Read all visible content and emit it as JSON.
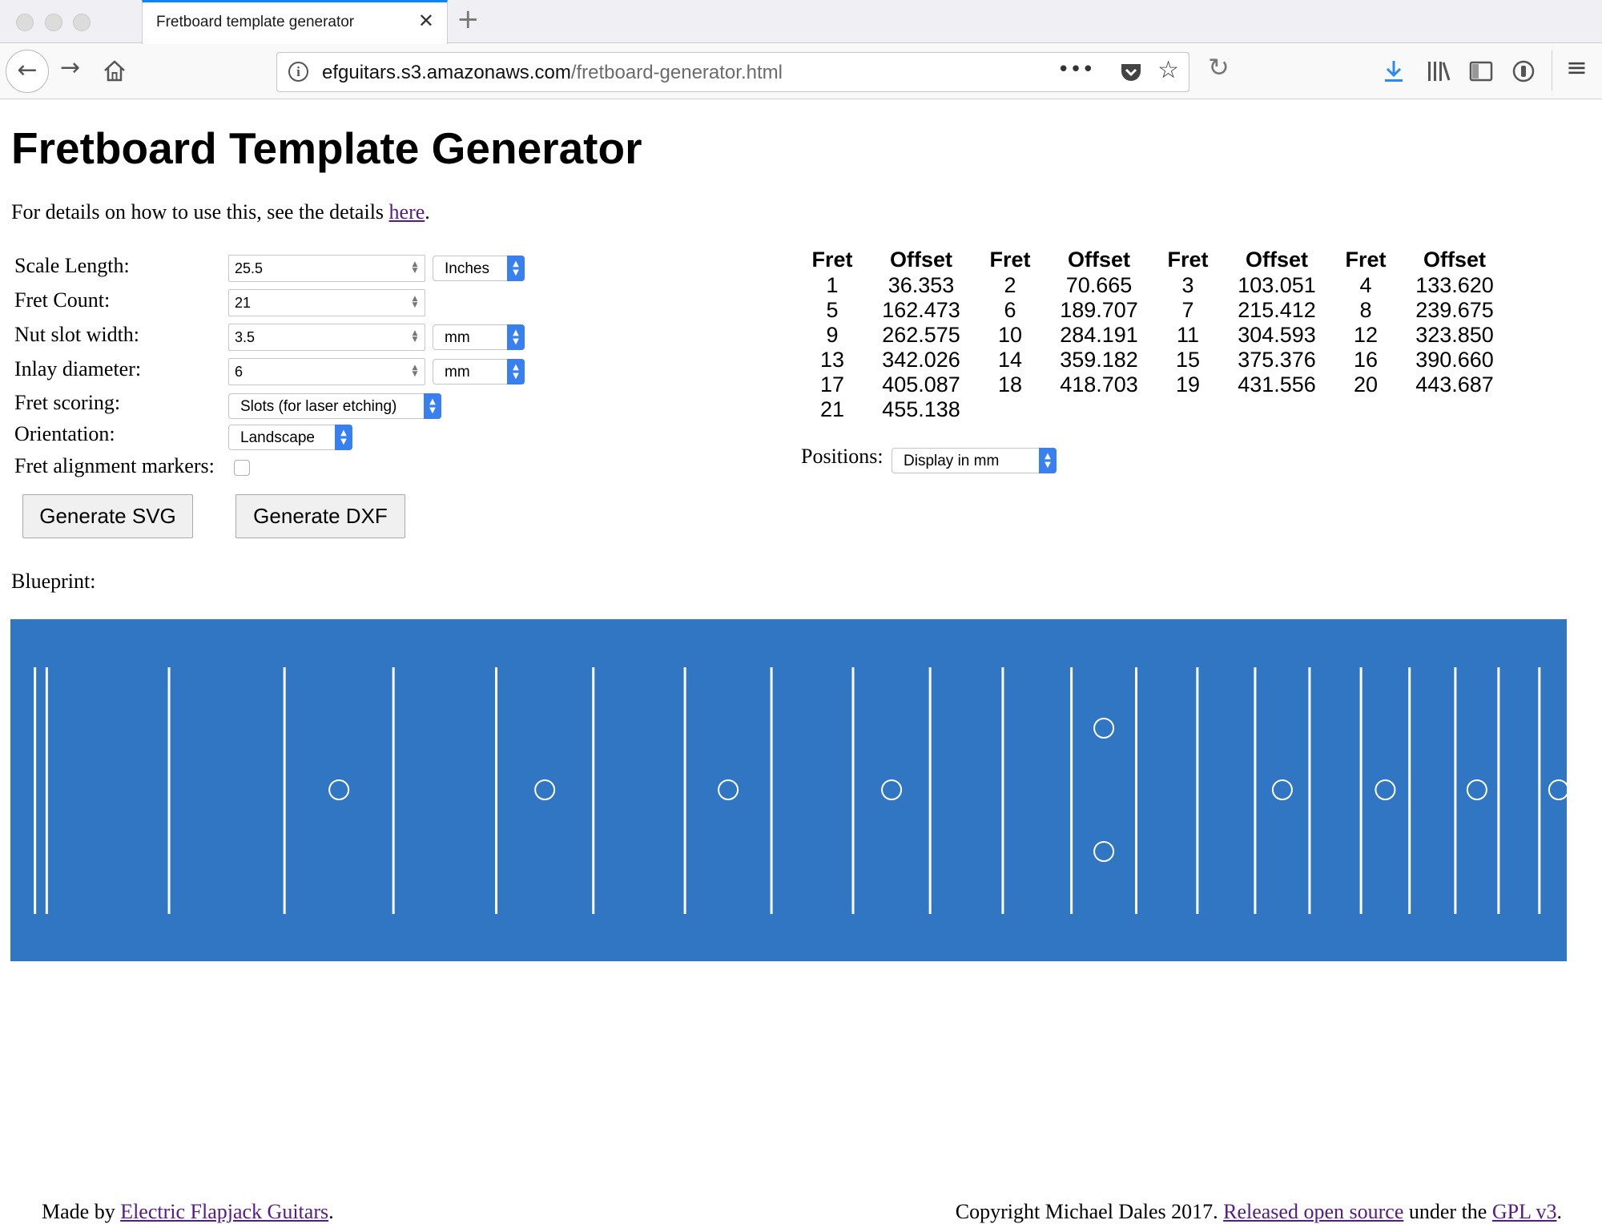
{
  "browser": {
    "tab_title": "Fretboard template generator",
    "url_host": "efguitars.s3.amazonaws.com",
    "url_path": "/fretboard-generator.html"
  },
  "page": {
    "title": "Fretboard Template Generator",
    "intro_text": "For details on how to use this, see the details ",
    "intro_link": "here",
    "intro_end": "."
  },
  "form": {
    "scale_length": {
      "label": "Scale Length:",
      "value": "25.5",
      "unit": "Inches"
    },
    "fret_count": {
      "label": "Fret Count:",
      "value": "21"
    },
    "nut_slot_width": {
      "label": "Nut slot width:",
      "value": "3.5",
      "unit": "mm"
    },
    "inlay_diameter": {
      "label": "Inlay diameter:",
      "value": "6",
      "unit": "mm"
    },
    "fret_scoring": {
      "label": "Fret scoring:",
      "value": "Slots (for laser etching)"
    },
    "orientation": {
      "label": "Orientation:",
      "value": "Landscape"
    },
    "fret_alignment_markers": {
      "label": "Fret alignment markers:",
      "checked": false
    },
    "generate_svg": "Generate SVG",
    "generate_dxf": "Generate DXF"
  },
  "table": {
    "header_fret": "Fret",
    "header_offset": "Offset",
    "rows": [
      [
        [
          "1",
          "36.353"
        ],
        [
          "2",
          "70.665"
        ],
        [
          "3",
          "103.051"
        ],
        [
          "4",
          "133.620"
        ]
      ],
      [
        [
          "5",
          "162.473"
        ],
        [
          "6",
          "189.707"
        ],
        [
          "7",
          "215.412"
        ],
        [
          "8",
          "239.675"
        ]
      ],
      [
        [
          "9",
          "262.575"
        ],
        [
          "10",
          "284.191"
        ],
        [
          "11",
          "304.593"
        ],
        [
          "12",
          "323.850"
        ]
      ],
      [
        [
          "13",
          "342.026"
        ],
        [
          "14",
          "359.182"
        ],
        [
          "15",
          "375.376"
        ],
        [
          "16",
          "390.660"
        ]
      ],
      [
        [
          "17",
          "405.087"
        ],
        [
          "18",
          "418.703"
        ],
        [
          "19",
          "431.556"
        ],
        [
          "20",
          "443.687"
        ]
      ],
      [
        [
          "21",
          "455.138"
        ]
      ]
    ]
  },
  "positions": {
    "label": "Positions:",
    "value": "Display in mm"
  },
  "blueprint": {
    "label": "Blueprint:",
    "background": "#3176c3",
    "line_color": "#ffffff",
    "scale_length_mm": 647.7,
    "nut_slot_mm": 3.5,
    "inlay_frets": [
      3,
      5,
      7,
      9,
      12,
      15,
      17,
      19,
      21
    ],
    "double_inlay_frets": [
      12
    ]
  },
  "footer": {
    "made_by": "Made by ",
    "made_by_link": "Electric Flapjack Guitars",
    "made_by_end": ".",
    "copyright": "Copyright Michael Dales 2017. ",
    "released_link": "Released open source",
    "under_text": " under the ",
    "gpl_link": "GPL v3",
    "end": "."
  }
}
